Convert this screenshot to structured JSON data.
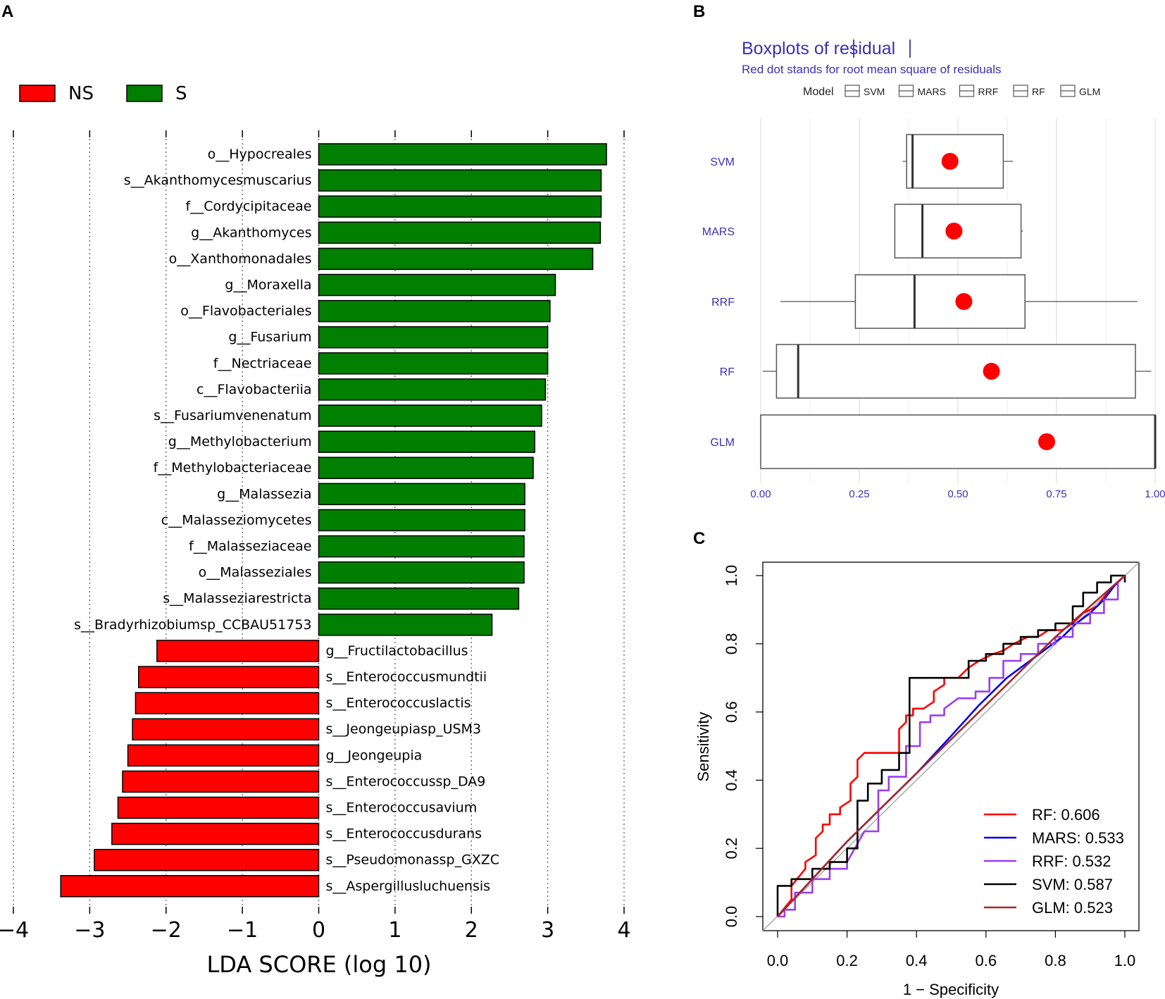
{
  "panel_labels": {
    "a": "A",
    "b": "B",
    "c": "C"
  },
  "chart_data": [
    {
      "id": "lefse",
      "type": "bar",
      "orientation": "horizontal",
      "xlabel": "LDA SCORE (log 10)",
      "xlim": [
        -4,
        4
      ],
      "xticks": [
        -4,
        -3,
        -2,
        -1,
        0,
        1,
        2,
        3,
        4
      ],
      "xtick_labels": [
        "−4",
        "−3",
        "−2",
        "−1",
        "0",
        "1",
        "2",
        "3",
        "4"
      ],
      "grid": "vertical dotted",
      "legend": [
        {
          "label": "NS",
          "color": "#ff0000"
        },
        {
          "label": "S",
          "color": "#007f00"
        }
      ],
      "categories": [
        "o__Hypocreales",
        "s__Akanthomycesmuscarius",
        "f__Cordycipitaceae",
        "g__Akanthomyces",
        "o__Xanthomonadales",
        "g__Moraxella",
        "o__Flavobacteriales",
        "g__Fusarium",
        "f__Nectriaceae",
        "c__Flavobacteriia",
        "s__Fusariumvenenatum",
        "g__Methylobacterium",
        "f__Methylobacteriaceae",
        "g__Malassezia",
        "c__Malasseziomycetes",
        "f__Malasseziaceae",
        "o__Malasseziales",
        "s__Malasseziarestricta",
        "s__Bradyrhizobiumsp_CCBAU51753",
        "g__Fructilactobacillus",
        "s__Enterococcusmundtii",
        "s__Enterococcuslactis",
        "s__Jeongeupiasp_USM3",
        "g__Jeongeupia",
        "s__Enterococcussp_DA9",
        "s__Enterococcusavium",
        "s__Enterococcusdurans",
        "s__Pseudomonassp_GXZC",
        "s__Aspergillusluchuensis"
      ],
      "values": [
        3.77,
        3.7,
        3.7,
        3.69,
        3.59,
        3.1,
        3.03,
        3.0,
        3.0,
        2.97,
        2.92,
        2.83,
        2.81,
        2.7,
        2.7,
        2.69,
        2.69,
        2.62,
        2.27,
        -2.12,
        -2.36,
        -2.4,
        -2.44,
        -2.5,
        -2.57,
        -2.63,
        -2.71,
        -2.94,
        -3.38
      ],
      "groups": [
        "S",
        "S",
        "S",
        "S",
        "S",
        "S",
        "S",
        "S",
        "S",
        "S",
        "S",
        "S",
        "S",
        "S",
        "S",
        "S",
        "S",
        "S",
        "S",
        "NS",
        "NS",
        "NS",
        "NS",
        "NS",
        "NS",
        "NS",
        "NS",
        "NS",
        "NS"
      ]
    },
    {
      "id": "boxplots",
      "type": "boxplot",
      "orientation": "horizontal",
      "title": "Boxplots of ",
      "title_main": "residual",
      "subtitle": "Red dot stands for root mean square of residuals",
      "legend_title": "Model",
      "legend_items": [
        "SVM",
        "MARS",
        "RRF",
        "RF",
        "GLM"
      ],
      "xlim": [
        0,
        1
      ],
      "xticks": [
        0,
        0.25,
        0.5,
        0.75,
        1
      ],
      "xtick_labels": [
        "0.00",
        "0.25",
        "0.50",
        "0.75",
        "1.00"
      ],
      "series": [
        {
          "name": "SVM",
          "whisker_low": 0.36,
          "q1": 0.37,
          "median": 0.385,
          "q3": 0.615,
          "whisker_high": 0.64,
          "rms": 0.48
        },
        {
          "name": "MARS",
          "whisker_low": 0.34,
          "q1": 0.34,
          "median": 0.41,
          "q3": 0.66,
          "whisker_high": 0.665,
          "rms": 0.49
        },
        {
          "name": "RRF",
          "whisker_low": 0.05,
          "q1": 0.24,
          "median": 0.39,
          "q3": 0.67,
          "whisker_high": 0.955,
          "rms": 0.515
        },
        {
          "name": "RF",
          "whisker_low": 0.005,
          "q1": 0.04,
          "median": 0.095,
          "q3": 0.95,
          "whisker_high": 0.99,
          "rms": 0.585
        },
        {
          "name": "GLM",
          "whisker_low": 0.0,
          "q1": 0.0,
          "median": 1.0,
          "q3": 1.0,
          "whisker_high": 1.0,
          "rms": 0.725
        }
      ],
      "colors": {
        "title": "#3a32b4",
        "box": "#555555",
        "rms_dot": "#ff0000",
        "grid": "#e2e2e2"
      }
    },
    {
      "id": "roc",
      "type": "line",
      "xlabel": "1 − Specificity",
      "ylabel": "Sensitivity",
      "xlim": [
        0,
        1
      ],
      "ylim": [
        0,
        1
      ],
      "xticks": [
        0,
        0.2,
        0.4,
        0.6,
        0.8,
        1
      ],
      "xtick_labels": [
        "0.0",
        "0.2",
        "0.4",
        "0.6",
        "0.8",
        "1.0"
      ],
      "yticks": [
        0,
        0.2,
        0.4,
        0.6,
        0.8,
        1
      ],
      "ytick_labels": [
        "0.0",
        "0.2",
        "0.4",
        "0.6",
        "0.8",
        "1.0"
      ],
      "legend_position": "bottom-right",
      "series": [
        {
          "name": "RF",
          "label": "RF: 0.606",
          "color": "#ff0000",
          "x": [
            0,
            0.04,
            0.04,
            0.08,
            0.08,
            0.11,
            0.11,
            0.13,
            0.13,
            0.15,
            0.15,
            0.18,
            0.18,
            0.21,
            0.21,
            0.23,
            0.23,
            0.25,
            0.32,
            0.35,
            0.35,
            0.37,
            0.37,
            0.39,
            0.39,
            0.42,
            0.45,
            0.45,
            0.48,
            0.48,
            0.52,
            0.55,
            0.58,
            0.62,
            0.65,
            0.68,
            0.72,
            0.75,
            0.78,
            0.82,
            0.85,
            0.88,
            0.92,
            0.95,
            0.98,
            1.0
          ],
          "y": [
            0,
            0.05,
            0.09,
            0.14,
            0.16,
            0.18,
            0.23,
            0.25,
            0.27,
            0.27,
            0.3,
            0.3,
            0.32,
            0.34,
            0.39,
            0.41,
            0.46,
            0.48,
            0.48,
            0.48,
            0.55,
            0.57,
            0.59,
            0.59,
            0.61,
            0.61,
            0.63,
            0.66,
            0.68,
            0.7,
            0.7,
            0.73,
            0.75,
            0.77,
            0.78,
            0.8,
            0.82,
            0.82,
            0.84,
            0.84,
            0.86,
            0.89,
            0.91,
            0.95,
            0.98,
            1.0
          ]
        },
        {
          "name": "MARS",
          "label": "MARS: 0.533",
          "color": "#0000ee",
          "x": [
            0,
            0.1,
            0.2,
            0.3,
            0.4,
            0.5,
            0.58,
            0.62,
            0.66,
            0.7,
            0.74,
            0.78,
            0.82,
            0.86,
            0.9,
            0.94,
            0.97,
            1.0
          ],
          "y": [
            0,
            0.11,
            0.22,
            0.32,
            0.42,
            0.53,
            0.62,
            0.66,
            0.7,
            0.73,
            0.76,
            0.79,
            0.82,
            0.86,
            0.89,
            0.93,
            0.97,
            1.0
          ]
        },
        {
          "name": "RRF",
          "label": "RRF: 0.532",
          "color": "#9a3ef0",
          "x": [
            0,
            0.02,
            0.02,
            0.05,
            0.05,
            0.1,
            0.1,
            0.15,
            0.15,
            0.2,
            0.2,
            0.25,
            0.29,
            0.29,
            0.32,
            0.32,
            0.37,
            0.37,
            0.41,
            0.41,
            0.44,
            0.44,
            0.48,
            0.48,
            0.52,
            0.57,
            0.57,
            0.61,
            0.61,
            0.65,
            0.65,
            0.7,
            0.7,
            0.75,
            0.75,
            0.8,
            0.8,
            0.85,
            0.85,
            0.9,
            0.9,
            0.94,
            0.94,
            0.98,
            0.98,
            1.0
          ],
          "y": [
            0,
            0,
            0.02,
            0.02,
            0.07,
            0.07,
            0.11,
            0.11,
            0.14,
            0.14,
            0.16,
            0.25,
            0.25,
            0.37,
            0.37,
            0.41,
            0.41,
            0.5,
            0.5,
            0.57,
            0.57,
            0.59,
            0.59,
            0.61,
            0.64,
            0.64,
            0.66,
            0.66,
            0.7,
            0.7,
            0.75,
            0.75,
            0.77,
            0.77,
            0.8,
            0.8,
            0.82,
            0.82,
            0.86,
            0.86,
            0.89,
            0.89,
            0.93,
            0.93,
            0.98,
            1.0
          ]
        },
        {
          "name": "SVM",
          "label": "SVM: 0.587",
          "color": "#000000",
          "x": [
            0,
            0,
            0.04,
            0.04,
            0.1,
            0.1,
            0.15,
            0.15,
            0.2,
            0.2,
            0.23,
            0.23,
            0.26,
            0.26,
            0.3,
            0.3,
            0.35,
            0.35,
            0.38,
            0.38,
            0.5,
            0.55,
            0.55,
            0.6,
            0.6,
            0.65,
            0.65,
            0.7,
            0.7,
            0.75,
            0.75,
            0.8,
            0.8,
            0.85,
            0.85,
            0.88,
            0.88,
            0.92,
            0.92,
            0.96,
            0.96,
            1.0,
            1.0
          ],
          "y": [
            0,
            0.09,
            0.09,
            0.11,
            0.11,
            0.14,
            0.14,
            0.16,
            0.16,
            0.2,
            0.2,
            0.34,
            0.34,
            0.39,
            0.39,
            0.43,
            0.43,
            0.48,
            0.48,
            0.7,
            0.7,
            0.7,
            0.75,
            0.75,
            0.77,
            0.77,
            0.8,
            0.8,
            0.82,
            0.82,
            0.84,
            0.84,
            0.86,
            0.86,
            0.91,
            0.91,
            0.95,
            0.95,
            0.98,
            0.98,
            1.0,
            1.0,
            0.98
          ]
        },
        {
          "name": "GLM",
          "label": "GLM: 0.523",
          "color": "#a52a2a",
          "x": [
            0,
            0.2,
            0.4,
            0.6,
            0.8,
            1.0
          ],
          "y": [
            0,
            0.22,
            0.42,
            0.62,
            0.82,
            1.0
          ]
        }
      ]
    }
  ]
}
